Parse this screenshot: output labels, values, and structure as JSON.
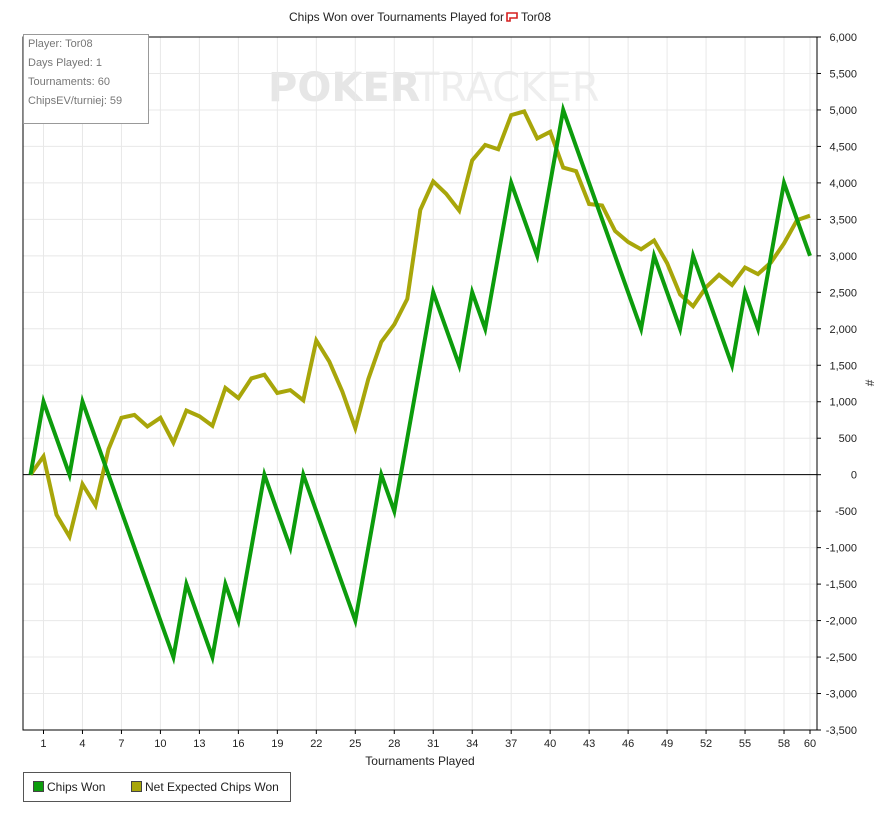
{
  "title_prefix": "Chips Won over Tournaments Played for",
  "player_name": "Tor08",
  "watermark": {
    "left": "POKER",
    "right": "TRACKER"
  },
  "infobox": {
    "player": "Player: Tor08",
    "days": "Days Played: 1",
    "tournaments": "Tournaments: 60",
    "chipsev": "ChipsEV/turniej: 59"
  },
  "legend": {
    "chips_won": "Chips Won",
    "net_expected": "Net Expected Chips Won"
  },
  "colors": {
    "chips_won": "#0c9c0c",
    "net_expected": "#a8a60a",
    "grid": "#e8e8e8",
    "axis": "#000000",
    "flag": "#d62020"
  },
  "chart_data": {
    "type": "line",
    "title": "Chips Won over Tournaments Played for Tor08",
    "xlabel": "Tournaments Played",
    "ylabel": "#",
    "xlim": [
      0,
      60
    ],
    "ylim": [
      -3500,
      6000
    ],
    "x_ticks": [
      1,
      4,
      7,
      10,
      13,
      16,
      19,
      22,
      25,
      28,
      31,
      34,
      37,
      40,
      43,
      46,
      49,
      52,
      55,
      58,
      60
    ],
    "y_ticks": [
      "6,000",
      "5,500",
      "5,000",
      "4,500",
      "4,000",
      "3,500",
      "3,000",
      "2,500",
      "2,000",
      "1,500",
      "1,000",
      "500",
      "0",
      "-500",
      "-1,000",
      "-1,500",
      "-2,000",
      "-2,500",
      "-3,000",
      "-3,500"
    ],
    "grid": true,
    "legend_position": "bottom-left",
    "x": [
      0,
      1,
      2,
      3,
      4,
      5,
      6,
      7,
      8,
      9,
      10,
      11,
      12,
      13,
      14,
      15,
      16,
      17,
      18,
      19,
      20,
      21,
      22,
      23,
      24,
      25,
      26,
      27,
      28,
      29,
      30,
      31,
      32,
      33,
      34,
      35,
      36,
      37,
      38,
      39,
      40,
      41,
      42,
      43,
      44,
      45,
      46,
      47,
      48,
      49,
      50,
      51,
      52,
      53,
      54,
      55,
      56,
      57,
      58,
      59,
      60
    ],
    "series": [
      {
        "name": "Chips Won",
        "values": [
          0,
          1000,
          500,
          0,
          1000,
          500,
          0,
          -500,
          -1000,
          -1500,
          -2000,
          -2500,
          -1500,
          -2000,
          -2500,
          -1500,
          -2000,
          -1000,
          0,
          -500,
          -1000,
          0,
          -500,
          -1000,
          -1500,
          -2000,
          -1000,
          0,
          -500,
          500,
          1500,
          2500,
          2000,
          1500,
          2500,
          2000,
          3000,
          4000,
          3500,
          3000,
          4000,
          5000,
          4500,
          4000,
          3500,
          3000,
          2500,
          2000,
          3000,
          2500,
          2000,
          3000,
          2500,
          2000,
          1500,
          2500,
          2000,
          3000,
          4000,
          3500,
          3000
        ]
      },
      {
        "name": "Net Expected Chips Won",
        "values": [
          0,
          250,
          -550,
          -850,
          -130,
          -420,
          350,
          780,
          820,
          660,
          780,
          440,
          880,
          800,
          670,
          1190,
          1050,
          1320,
          1370,
          1120,
          1160,
          1020,
          1840,
          1550,
          1140,
          640,
          1310,
          1820,
          2060,
          2410,
          3630,
          4020,
          3850,
          3620,
          4310,
          4520,
          4460,
          4930,
          4980,
          4610,
          4700,
          4210,
          4160,
          3710,
          3690,
          3340,
          3190,
          3090,
          3210,
          2900,
          2470,
          2310,
          2570,
          2740,
          2600,
          2840,
          2750,
          2910,
          3170,
          3490,
          3550
        ]
      }
    ]
  }
}
